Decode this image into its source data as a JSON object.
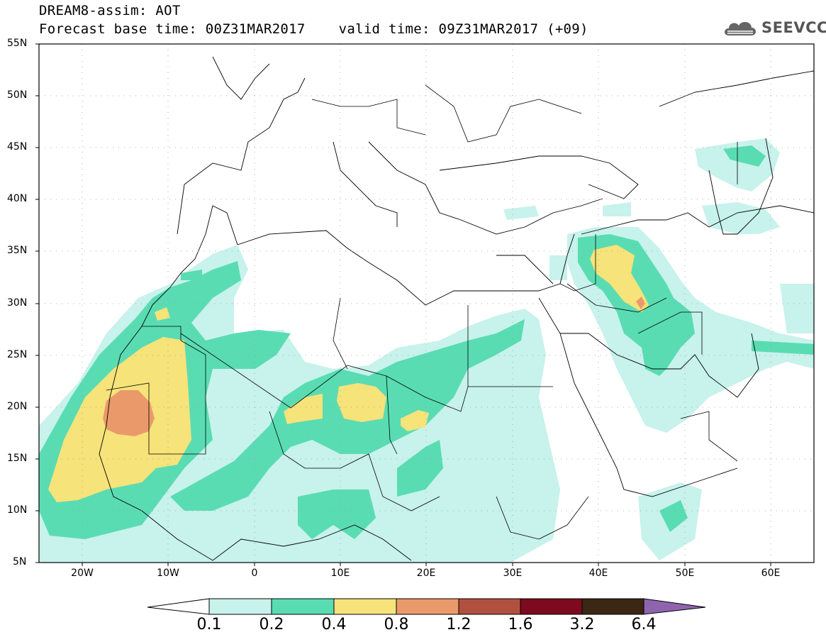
{
  "title": {
    "line1": "DREAM8-assim: AOT",
    "line2": "Forecast base time: 00Z31MAR2017    valid time: 09Z31MAR2017 (+09)"
  },
  "logo": {
    "text": "SEEVCCC",
    "icon": "cloud-icon"
  },
  "map": {
    "lat_labels": [
      "55N",
      "50N",
      "45N",
      "40N",
      "35N",
      "30N",
      "25N",
      "20N",
      "15N",
      "10N",
      "5N"
    ],
    "lon_labels": [
      "20W",
      "10W",
      "0",
      "10E",
      "20E",
      "30E",
      "40E",
      "50E",
      "60E"
    ],
    "lon_range": [
      -25,
      65
    ],
    "lat_range": [
      5,
      55
    ]
  },
  "colorbar": {
    "labels": [
      "0.1",
      "0.2",
      "0.4",
      "0.8",
      "1.2",
      "1.6",
      "3.2",
      "6.4"
    ],
    "colors": [
      "#ffffff",
      "#c8f2ec",
      "#5adcb2",
      "#f6e37a",
      "#ea9a6a",
      "#b2503f",
      "#7e0a1e",
      "#3a2714",
      "#8e64ae"
    ]
  }
}
